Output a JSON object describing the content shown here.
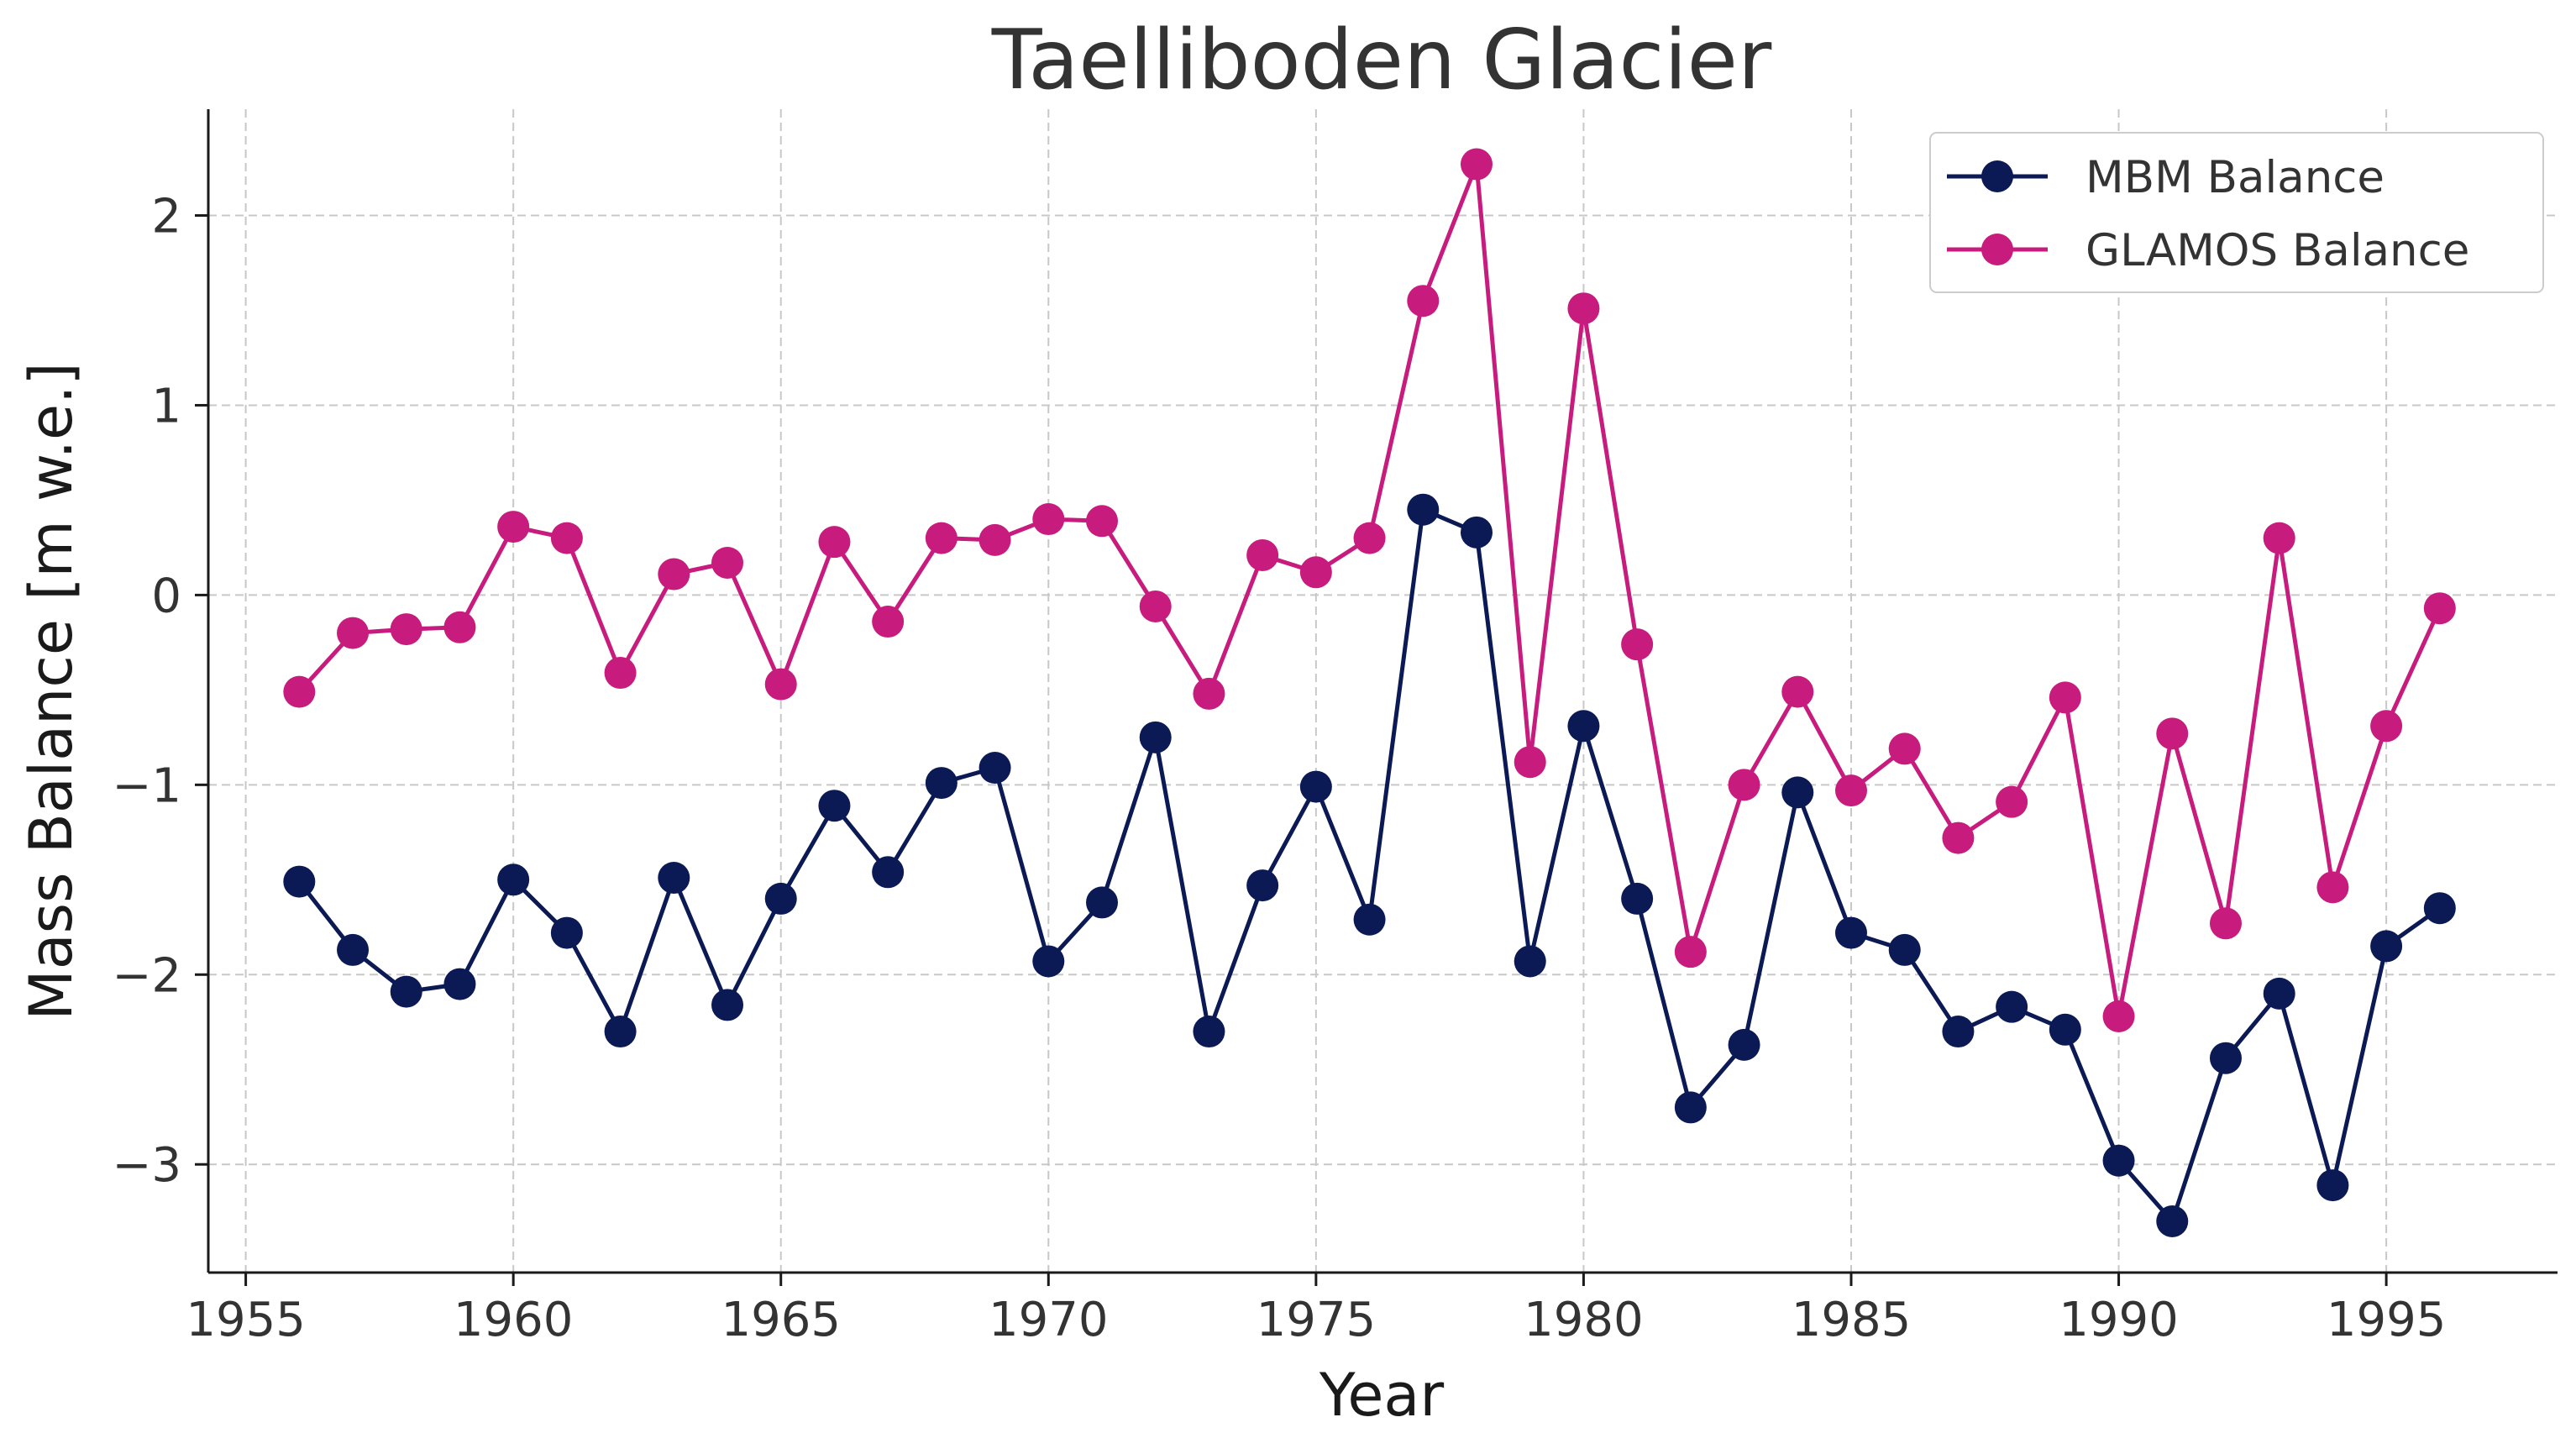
{
  "chart_data": {
    "type": "line",
    "title": "Taelliboden Glacier",
    "xlabel": "Year",
    "ylabel": "Mass Balance [m w.e.]",
    "xlim": [
      1954.3,
      1998.2
    ],
    "ylim": [
      -3.57,
      2.56
    ],
    "xticks": [
      1955,
      1960,
      1965,
      1970,
      1975,
      1980,
      1985,
      1990,
      1995
    ],
    "xtick_labels": [
      "1955",
      "1960",
      "1965",
      "1970",
      "1975",
      "1980",
      "1985",
      "1990",
      "1995"
    ],
    "yticks": [
      -3,
      -2,
      -1,
      0,
      1,
      2
    ],
    "ytick_labels": [
      "−3",
      "−2",
      "−1",
      "0",
      "1",
      "2"
    ],
    "grid": true,
    "legend_position": "top-right",
    "x": [
      1956,
      1957,
      1958,
      1959,
      1960,
      1961,
      1962,
      1963,
      1964,
      1965,
      1966,
      1967,
      1968,
      1969,
      1970,
      1971,
      1972,
      1973,
      1974,
      1975,
      1976,
      1977,
      1978,
      1979,
      1980,
      1981,
      1982,
      1983,
      1984,
      1985,
      1986,
      1987,
      1988,
      1989,
      1990,
      1991,
      1992,
      1993,
      1994,
      1995,
      1996
    ],
    "series": [
      {
        "name": "MBM Balance",
        "color": "#0b1a55",
        "values": [
          -1.51,
          -1.87,
          -2.09,
          -2.05,
          -1.5,
          -1.78,
          -2.3,
          -1.49,
          -2.16,
          -1.6,
          -1.11,
          -1.46,
          -0.99,
          -0.91,
          -1.93,
          -1.62,
          -0.75,
          -2.3,
          -1.53,
          -1.01,
          -1.71,
          0.45,
          0.33,
          -1.93,
          -0.69,
          -1.6,
          -2.7,
          -2.37,
          -1.04,
          -1.78,
          -1.87,
          -2.3,
          -2.17,
          -2.29,
          -2.98,
          -3.3,
          -2.44,
          -2.1,
          -3.11,
          -1.85,
          -1.65
        ]
      },
      {
        "name": "GLAMOS Balance",
        "color": "#c71c7e",
        "values": [
          -0.51,
          -0.2,
          -0.18,
          -0.17,
          0.36,
          0.3,
          -0.41,
          0.11,
          0.17,
          -0.47,
          0.28,
          -0.14,
          0.3,
          0.29,
          0.4,
          0.39,
          -0.06,
          -0.52,
          0.21,
          0.12,
          0.3,
          1.55,
          2.27,
          -0.88,
          1.51,
          -0.26,
          -1.88,
          -1.0,
          -0.51,
          -1.03,
          -0.81,
          -1.28,
          -1.09,
          -0.54,
          -2.22,
          -0.73,
          -1.73,
          0.3,
          -1.54,
          -0.69,
          -0.07
        ]
      }
    ]
  }
}
